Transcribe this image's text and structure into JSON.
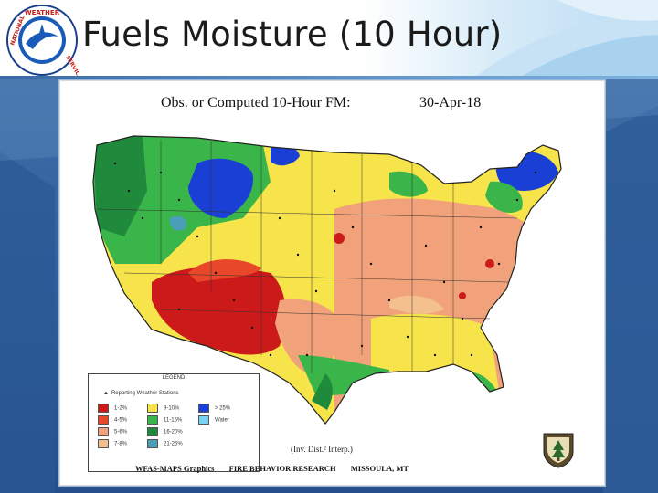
{
  "slide": {
    "title": "Fuels Moisture (10 Hour)",
    "logo_text": [
      "NATIONAL",
      "WEATHER",
      "SERVICE"
    ]
  },
  "map": {
    "title": "Obs. or Computed 10-Hour FM:",
    "date": "30-Apr-18",
    "interp_note": "(Inv. Dist.² Interp.)",
    "footer": {
      "left": "WFAS-MAPS Graphics",
      "center": "FIRE BEHAVIOR RESEARCH",
      "right": "MISSOULA, MT"
    },
    "logo": "US Forest Service shield",
    "legend": {
      "header": "LEGEND",
      "stations_label": "Reporting Weather Stations",
      "items": [
        {
          "label": "1-2%",
          "color": "#cc1a1a"
        },
        {
          "label": "4-5%",
          "color": "#e8472a"
        },
        {
          "label": "5-6%",
          "color": "#f2a27a"
        },
        {
          "label": "7-8%",
          "color": "#f4c08e"
        },
        {
          "label": "9-10%",
          "color": "#f6e44a"
        },
        {
          "label": "11-15%",
          "color": "#39b54a"
        },
        {
          "label": "16-20%",
          "color": "#1f8a3c"
        },
        {
          "label": "21-25%",
          "color": "#4a9fb8"
        },
        {
          "label": "> 25%",
          "color": "#1a3fd4"
        },
        {
          "label": "Water",
          "color": "#7ad3f0"
        }
      ]
    }
  }
}
